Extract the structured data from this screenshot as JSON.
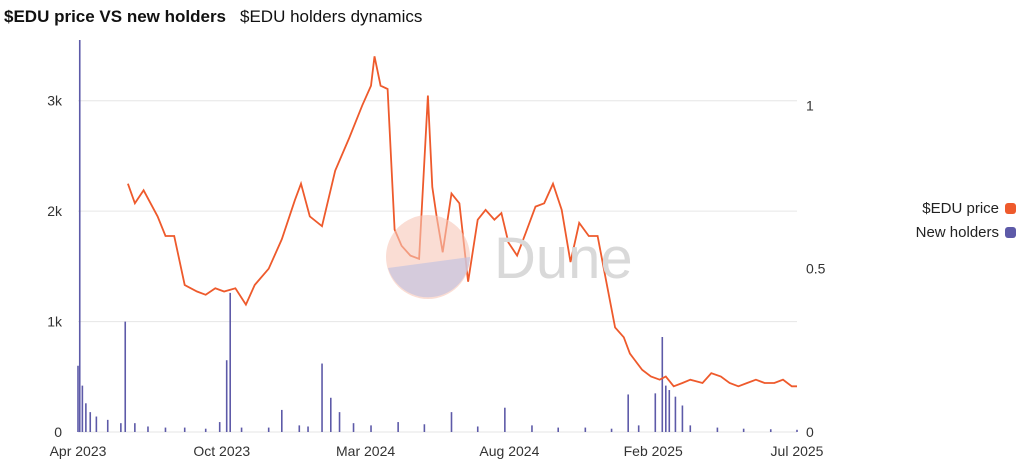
{
  "header": {
    "title": "$EDU price VS new holders",
    "tab": "$EDU holders dynamics"
  },
  "watermark": "Dune",
  "colors": {
    "price": "#ee5a2c",
    "holders": "#5d5aa8",
    "grid": "#e6e6e6"
  },
  "chart_data": {
    "type": "line",
    "x_ticks": [
      "Apr 2023",
      "Oct 2023",
      "Mar 2024",
      "Aug 2024",
      "Feb 2025",
      "Jul 2025"
    ],
    "y_left_ticks": [
      "0",
      "1k",
      "2k",
      "3k"
    ],
    "y_right_ticks": [
      "0",
      "0.5",
      "1"
    ],
    "y_left_range": [
      0,
      3550
    ],
    "y_right_range": [
      0,
      1.2
    ],
    "x_range": [
      "2023-04-01",
      "2025-07-01"
    ],
    "legend": [
      {
        "name": "$EDU price",
        "color": "#ee5a2c"
      },
      {
        "name": "New holders",
        "color": "#5d5aa8"
      }
    ],
    "series": [
      {
        "name": "$EDU price",
        "axis": "right",
        "x": [
          "2023-05-28",
          "2023-06-05",
          "2023-06-15",
          "2023-07-01",
          "2023-07-10",
          "2023-07-20",
          "2023-08-01",
          "2023-08-15",
          "2023-08-25",
          "2023-09-05",
          "2023-09-15",
          "2023-09-28",
          "2023-10-10",
          "2023-10-20",
          "2023-11-05",
          "2023-11-20",
          "2023-12-05",
          "2023-12-12",
          "2023-12-22",
          "2024-01-05",
          "2024-01-20",
          "2024-02-05",
          "2024-02-20",
          "2024-03-01",
          "2024-03-05",
          "2024-03-12",
          "2024-03-20",
          "2024-03-28",
          "2024-04-05",
          "2024-04-15",
          "2024-04-25",
          "2024-05-05",
          "2024-05-10",
          "2024-05-15",
          "2024-05-22",
          "2024-06-01",
          "2024-06-10",
          "2024-06-20",
          "2024-07-01",
          "2024-07-10",
          "2024-07-20",
          "2024-07-28",
          "2024-08-05",
          "2024-08-15",
          "2024-08-25",
          "2024-09-05",
          "2024-09-15",
          "2024-09-25",
          "2024-10-05",
          "2024-10-15",
          "2024-10-25",
          "2024-11-05",
          "2024-11-15",
          "2024-11-25",
          "2024-12-05",
          "2024-12-15",
          "2024-12-22",
          "2025-01-05",
          "2025-01-15",
          "2025-01-25",
          "2025-02-01",
          "2025-02-10",
          "2025-02-20",
          "2025-03-01",
          "2025-03-15",
          "2025-03-25",
          "2025-04-05",
          "2025-04-15",
          "2025-04-25",
          "2025-05-05",
          "2025-05-15",
          "2025-05-25",
          "2025-06-05",
          "2025-06-15",
          "2025-06-25",
          "2025-07-01"
        ],
        "values": [
          0.76,
          0.7,
          0.74,
          0.66,
          0.6,
          0.6,
          0.45,
          0.43,
          0.42,
          0.44,
          0.43,
          0.44,
          0.39,
          0.45,
          0.5,
          0.59,
          0.71,
          0.76,
          0.66,
          0.63,
          0.8,
          0.9,
          1.0,
          1.06,
          1.15,
          1.06,
          1.05,
          0.62,
          0.57,
          0.54,
          0.53,
          1.03,
          0.75,
          0.66,
          0.55,
          0.73,
          0.7,
          0.46,
          0.65,
          0.68,
          0.65,
          0.67,
          0.58,
          0.54,
          0.61,
          0.69,
          0.7,
          0.76,
          0.68,
          0.52,
          0.64,
          0.6,
          0.6,
          0.46,
          0.32,
          0.29,
          0.24,
          0.19,
          0.17,
          0.16,
          0.17,
          0.14,
          0.15,
          0.16,
          0.15,
          0.18,
          0.17,
          0.15,
          0.14,
          0.15,
          0.16,
          0.15,
          0.15,
          0.16,
          0.14,
          0.14
        ]
      },
      {
        "name": "New holders",
        "axis": "left",
        "x": [
          "2023-04-01",
          "2023-04-03",
          "2023-04-06",
          "2023-04-10",
          "2023-04-15",
          "2023-04-22",
          "2023-05-05",
          "2023-05-20",
          "2023-05-25",
          "2023-06-05",
          "2023-06-20",
          "2023-07-10",
          "2023-08-01",
          "2023-08-25",
          "2023-09-10",
          "2023-09-18",
          "2023-09-22",
          "2023-10-05",
          "2023-11-05",
          "2023-11-20",
          "2023-12-10",
          "2023-12-20",
          "2024-01-05",
          "2024-01-15",
          "2024-01-25",
          "2024-02-10",
          "2024-03-01",
          "2024-04-01",
          "2024-05-01",
          "2024-06-01",
          "2024-07-01",
          "2024-08-01",
          "2024-09-01",
          "2024-10-01",
          "2024-11-01",
          "2024-12-01",
          "2024-12-20",
          "2025-01-01",
          "2025-01-20",
          "2025-01-28",
          "2025-02-01",
          "2025-02-05",
          "2025-02-12",
          "2025-02-20",
          "2025-03-01",
          "2025-04-01",
          "2025-05-01",
          "2025-06-01",
          "2025-07-01"
        ],
        "values": [
          600,
          3550,
          420,
          260,
          180,
          140,
          110,
          80,
          1000,
          80,
          50,
          40,
          40,
          30,
          90,
          650,
          1260,
          40,
          40,
          200,
          60,
          50,
          620,
          310,
          180,
          80,
          60,
          90,
          70,
          180,
          50,
          220,
          60,
          40,
          40,
          30,
          340,
          60,
          350,
          860,
          420,
          380,
          320,
          240,
          60,
          40,
          30,
          25,
          20
        ]
      }
    ]
  }
}
